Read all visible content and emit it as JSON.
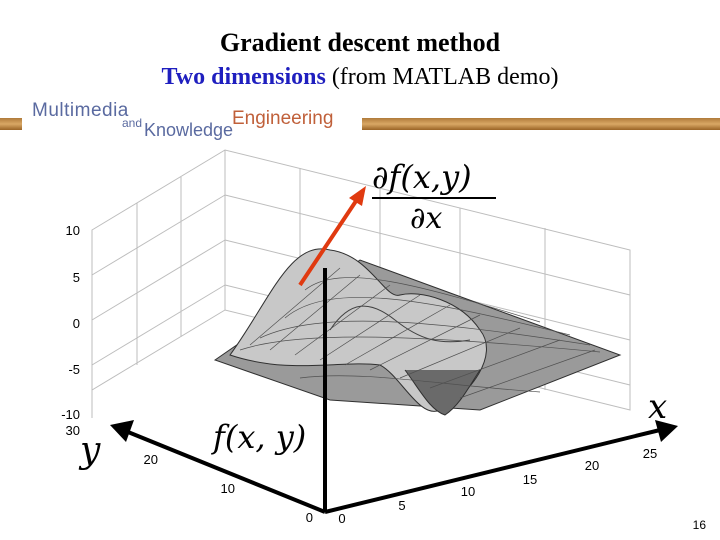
{
  "slide": {
    "title": "Gradient descent method",
    "subtitle_highlight": "Two dimensions",
    "subtitle_rest": " (from MATLAB demo)",
    "page_number": "16"
  },
  "logo": {
    "line1": "Multimedia",
    "line2": "and",
    "line3": "Knowledge",
    "line4": "Engineering"
  },
  "figure": {
    "gradient_label_num": "∂f(x,y)",
    "gradient_label_den": "∂x",
    "f_label": "f(x, y)",
    "x_label": "x",
    "y_label": "y",
    "z_ticks": [
      "10",
      "5",
      "0",
      "-5",
      "-10"
    ],
    "y_ticks": [
      "30",
      "20",
      "10",
      "0"
    ],
    "x_ticks": [
      "0",
      "5",
      "10",
      "15",
      "20",
      "25"
    ],
    "colors": {
      "arrow": "#e03a10",
      "surface": "#c8c8c8",
      "mesh": "#404040",
      "axis": "#000000"
    }
  }
}
